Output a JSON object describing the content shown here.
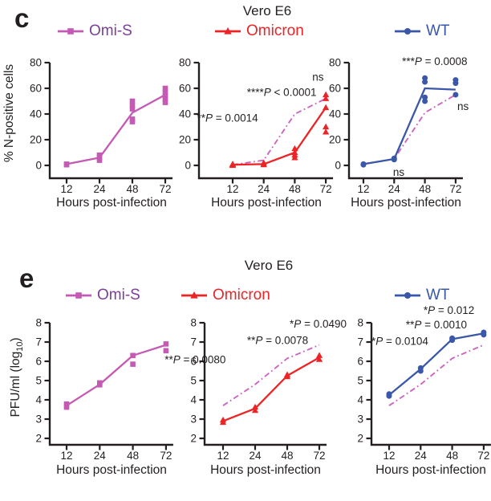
{
  "figure": {
    "background": "#FFFFFF",
    "text_color": "#231F20",
    "ref_line_color": "#CB66C1",
    "ylabel_e_pre": "PFU/ml (log",
    "ylabel_e_sub": "10",
    "ylabel_e_post": ")"
  },
  "chart_data": [
    {
      "panel": "c",
      "title": "Vero E6",
      "type": "line",
      "x": [
        12,
        24,
        48,
        72
      ],
      "xlabel": "Hours post-infection",
      "ylabel": "% N-positive cells",
      "ylim": [
        0,
        80
      ],
      "yticks": [
        0,
        20,
        40,
        60,
        80
      ],
      "grid": false,
      "legend_position": "top",
      "charts": [
        {
          "name": "Omi-S",
          "color": "#C45AB4",
          "legend_text_color": "#7B3F9B",
          "marker": "square",
          "line": [
            1,
            6,
            41,
            55
          ],
          "scatter": [
            [
              0.5,
              1
            ],
            [
              4,
              6,
              8
            ],
            [
              34,
              36,
              44,
              47,
              50
            ],
            [
              49,
              52,
              54,
              57,
              60
            ]
          ]
        },
        {
          "name": "Omicron",
          "color": "#EC2426",
          "legend_text_color": "#EC2426",
          "marker": "triangle",
          "line": [
            0.5,
            1,
            10,
            45
          ],
          "scatter": [
            [
              0,
              0.5,
              1
            ],
            [
              0.5,
              1,
              2
            ],
            [
              6,
              8,
              10,
              13
            ],
            [
              26,
              30,
              45,
              52,
              55
            ]
          ],
          "ref_line": [
            0.5,
            4,
            40,
            52
          ],
          "annotations": [
            {
              "text": "****P < 0.0001",
              "xi": 2.7,
              "y": 54,
              "anchor": "end"
            },
            {
              "text": "**P = 0.0014",
              "xi": -1.15,
              "y": 34,
              "anchor": "start"
            },
            {
              "text": "ns",
              "xi": 2.75,
              "y": 66,
              "anchor": "middle"
            }
          ]
        },
        {
          "name": "WT",
          "color": "#3A57A8",
          "legend_text_color": "#3A57A8",
          "marker": "circle",
          "line": [
            1,
            5,
            60,
            59
          ],
          "scatter": [
            [
              0.5,
              1
            ],
            [
              4.5,
              5.5
            ],
            [
              50,
              53,
              65,
              68
            ],
            [
              55,
              64,
              66.5
            ]
          ],
          "ref_line": [
            1,
            5,
            41,
            55
          ],
          "annotations": [
            {
              "text": "***P = 0.0008",
              "xi": 2.32,
              "y": 78,
              "anchor": "middle"
            },
            {
              "text": "ns",
              "xi": 1.15,
              "y": -8,
              "anchor": "middle"
            },
            {
              "text": "ns",
              "xi": 3.24,
              "y": 43,
              "anchor": "middle"
            }
          ]
        }
      ]
    },
    {
      "panel": "e",
      "title": "Vero E6",
      "type": "line",
      "x": [
        12,
        24,
        48,
        72
      ],
      "xlabel": "Hours post-infection",
      "ylabel": "PFU/ml (log10)",
      "ylim": [
        2,
        8
      ],
      "yticks": [
        2,
        3,
        4,
        5,
        6,
        7,
        8
      ],
      "grid": false,
      "legend_position": "top",
      "charts": [
        {
          "name": "Omi-S",
          "color": "#C45AB4",
          "legend_text_color": "#7B3F9B",
          "marker": "square",
          "line": [
            3.7,
            4.8,
            6.3,
            6.85
          ],
          "scatter": [
            [
              3.62,
              3.78
            ],
            [
              4.78,
              4.88
            ],
            [
              5.85,
              6.3
            ],
            [
              6.55,
              6.9
            ]
          ]
        },
        {
          "name": "Omicron",
          "color": "#EC2426",
          "legend_text_color": "#EC2426",
          "marker": "triangle",
          "line": [
            2.9,
            3.55,
            5.25,
            6.2
          ],
          "scatter": [
            [
              2.83,
              2.95
            ],
            [
              3.45,
              3.62
            ],
            [
              5.2,
              5.3
            ],
            [
              6.1,
              6.3
            ]
          ],
          "ref_line": [
            3.7,
            4.8,
            6.15,
            6.85
          ],
          "annotations": [
            {
              "text": "*P = 0.0490",
              "xi": 3.85,
              "y": 7.75,
              "anchor": "end"
            },
            {
              "text": "**P = 0.0078",
              "xi": 1.7,
              "y": 6.9,
              "anchor": "middle"
            },
            {
              "text": "**P = 0.0080",
              "xi": -1.82,
              "y": 5.9,
              "anchor": "start"
            }
          ]
        },
        {
          "name": "WT",
          "color": "#3A57A8",
          "legend_text_color": "#3A57A8",
          "marker": "circle",
          "line": [
            4.25,
            5.6,
            7.15,
            7.45
          ],
          "scatter": [
            [
              4.2,
              4.3
            ],
            [
              5.5,
              5.65
            ],
            [
              7.1,
              7.2
            ],
            [
              7.38,
              7.5
            ]
          ],
          "ref_line": [
            3.7,
            4.8,
            6.15,
            6.85
          ],
          "annotations": [
            {
              "text": "*P = 0.012",
              "xi": 1.09,
              "y": 8.45,
              "anchor": "start"
            },
            {
              "text": "**P = 0.0010",
              "xi": 1.5,
              "y": 7.7,
              "anchor": "middle"
            },
            {
              "text": "*P = 0.0104",
              "xi": -0.56,
              "y": 6.85,
              "anchor": "start"
            }
          ]
        }
      ]
    }
  ]
}
